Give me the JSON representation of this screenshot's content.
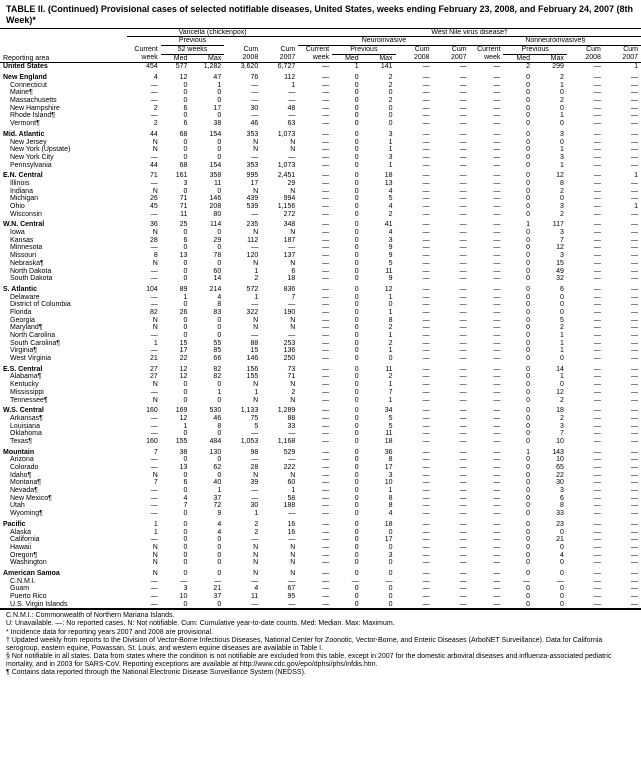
{
  "title": "TABLE II. (Continued) Provisional cases of selected notifiable diseases, United States, weeks ending February 23, 2008, and February 24, 2007 (8th Week)*",
  "group_headers": {
    "g1": "Varicella (chickenpox)",
    "g2": "West Nile virus disease†",
    "g2a": "Neuroinvasive",
    "g2b": "Nonneuroinvasive§"
  },
  "sub_headers": {
    "area": "Reporting area",
    "current": "Current",
    "prev": "Previous",
    "wk52": "52 weeks",
    "week": "week",
    "med": "Med",
    "max": "Max",
    "cum08": "Cum",
    "cum07": "Cum",
    "y08": "2008",
    "y07": "2007"
  },
  "rows": [
    {
      "sec": "hdr",
      "a": "United States",
      "v": [
        "454",
        "577",
        "1,282",
        "3,620",
        "6,727",
        "—",
        "1",
        "141",
        "—",
        "—",
        "—",
        "2",
        "299",
        "—",
        "1"
      ]
    },
    {
      "sec": "grp",
      "a": "New England",
      "v": [
        "4",
        "12",
        "47",
        "76",
        "112",
        "—",
        "0",
        "2",
        "—",
        "—",
        "—",
        "0",
        "2",
        "—",
        "—"
      ]
    },
    {
      "a": "Connecticut",
      "v": [
        "—",
        "0",
        "1",
        "—",
        "1",
        "—",
        "0",
        "2",
        "—",
        "—",
        "—",
        "0",
        "1",
        "—",
        "—"
      ]
    },
    {
      "a": "Maine¶",
      "v": [
        "—",
        "0",
        "0",
        "—",
        "—",
        "—",
        "0",
        "0",
        "—",
        "—",
        "—",
        "0",
        "0",
        "—",
        "—"
      ]
    },
    {
      "a": "Massachusetts",
      "v": [
        "—",
        "0",
        "0",
        "—",
        "—",
        "—",
        "0",
        "2",
        "—",
        "—",
        "—",
        "0",
        "2",
        "—",
        "—"
      ]
    },
    {
      "a": "New Hampshire",
      "v": [
        "2",
        "6",
        "17",
        "30",
        "48",
        "—",
        "0",
        "0",
        "—",
        "—",
        "—",
        "0",
        "0",
        "—",
        "—"
      ]
    },
    {
      "a": "Rhode Island¶",
      "v": [
        "—",
        "0",
        "0",
        "—",
        "—",
        "—",
        "0",
        "0",
        "—",
        "—",
        "—",
        "0",
        "1",
        "—",
        "—"
      ]
    },
    {
      "a": "Vermont¶",
      "v": [
        "2",
        "6",
        "38",
        "46",
        "63",
        "—",
        "0",
        "0",
        "—",
        "—",
        "—",
        "0",
        "0",
        "—",
        "—"
      ]
    },
    {
      "sec": "grp",
      "a": "Mid. Atlantic",
      "v": [
        "44",
        "68",
        "154",
        "353",
        "1,073",
        "—",
        "0",
        "3",
        "—",
        "—",
        "—",
        "0",
        "3",
        "—",
        "—"
      ]
    },
    {
      "a": "New Jersey",
      "v": [
        "N",
        "0",
        "0",
        "N",
        "N",
        "—",
        "0",
        "1",
        "—",
        "—",
        "—",
        "0",
        "0",
        "—",
        "—"
      ]
    },
    {
      "a": "New York (Upstate)",
      "v": [
        "N",
        "0",
        "0",
        "N",
        "N",
        "—",
        "0",
        "1",
        "—",
        "—",
        "—",
        "0",
        "1",
        "—",
        "—"
      ]
    },
    {
      "a": "New York City",
      "v": [
        "—",
        "0",
        "0",
        "—",
        "—",
        "—",
        "0",
        "3",
        "—",
        "—",
        "—",
        "0",
        "3",
        "—",
        "—"
      ]
    },
    {
      "a": "Pennsylvania",
      "v": [
        "44",
        "68",
        "154",
        "353",
        "1,073",
        "—",
        "0",
        "1",
        "—",
        "—",
        "—",
        "0",
        "1",
        "—",
        "—"
      ]
    },
    {
      "sec": "grp",
      "a": "E.N. Central",
      "v": [
        "71",
        "161",
        "358",
        "995",
        "2,451",
        "—",
        "0",
        "18",
        "—",
        "—",
        "—",
        "0",
        "12",
        "—",
        "1"
      ]
    },
    {
      "a": "Illinois",
      "v": [
        "—",
        "3",
        "11",
        "17",
        "29",
        "—",
        "0",
        "13",
        "—",
        "—",
        "—",
        "0",
        "8",
        "—",
        "—"
      ]
    },
    {
      "a": "Indiana",
      "v": [
        "N",
        "0",
        "0",
        "N",
        "N",
        "—",
        "0",
        "4",
        "—",
        "—",
        "—",
        "0",
        "2",
        "—",
        "—"
      ]
    },
    {
      "a": "Michigan",
      "v": [
        "26",
        "71",
        "146",
        "439",
        "994",
        "—",
        "0",
        "5",
        "—",
        "—",
        "—",
        "0",
        "0",
        "—",
        "—"
      ]
    },
    {
      "a": "Ohio",
      "v": [
        "45",
        "71",
        "208",
        "539",
        "1,156",
        "—",
        "0",
        "4",
        "—",
        "—",
        "—",
        "0",
        "3",
        "—",
        "1"
      ]
    },
    {
      "a": "Wisconsin",
      "v": [
        "—",
        "11",
        "80",
        "—",
        "272",
        "—",
        "0",
        "2",
        "—",
        "—",
        "—",
        "0",
        "2",
        "—",
        "—"
      ]
    },
    {
      "sec": "grp",
      "a": "W.N. Central",
      "v": [
        "36",
        "25",
        "114",
        "235",
        "348",
        "—",
        "0",
        "41",
        "—",
        "—",
        "—",
        "1",
        "117",
        "—",
        "—"
      ]
    },
    {
      "a": "Iowa",
      "v": [
        "N",
        "0",
        "0",
        "N",
        "N",
        "—",
        "0",
        "4",
        "—",
        "—",
        "—",
        "0",
        "3",
        "—",
        "—"
      ]
    },
    {
      "a": "Kansas",
      "v": [
        "28",
        "6",
        "29",
        "112",
        "187",
        "—",
        "0",
        "3",
        "—",
        "—",
        "—",
        "0",
        "7",
        "—",
        "—"
      ]
    },
    {
      "a": "Minnesota",
      "v": [
        "—",
        "0",
        "0",
        "—",
        "—",
        "—",
        "0",
        "9",
        "—",
        "—",
        "—",
        "0",
        "12",
        "—",
        "—"
      ]
    },
    {
      "a": "Missouri",
      "v": [
        "8",
        "13",
        "78",
        "120",
        "137",
        "—",
        "0",
        "9",
        "—",
        "—",
        "—",
        "0",
        "3",
        "—",
        "—"
      ]
    },
    {
      "a": "Nebraska¶",
      "v": [
        "N",
        "0",
        "0",
        "N",
        "N",
        "—",
        "0",
        "5",
        "—",
        "—",
        "—",
        "0",
        "15",
        "—",
        "—"
      ]
    },
    {
      "a": "North Dakota",
      "v": [
        "—",
        "0",
        "60",
        "1",
        "6",
        "—",
        "0",
        "11",
        "—",
        "—",
        "—",
        "0",
        "49",
        "—",
        "—"
      ]
    },
    {
      "a": "South Dakota",
      "v": [
        "—",
        "0",
        "14",
        "2",
        "18",
        "—",
        "0",
        "9",
        "—",
        "—",
        "—",
        "0",
        "32",
        "—",
        "—"
      ]
    },
    {
      "sec": "grp",
      "a": "S. Atlantic",
      "v": [
        "104",
        "89",
        "214",
        "572",
        "836",
        "—",
        "0",
        "12",
        "—",
        "—",
        "—",
        "0",
        "6",
        "—",
        "—"
      ]
    },
    {
      "a": "Delaware",
      "v": [
        "—",
        "1",
        "4",
        "1",
        "7",
        "—",
        "0",
        "1",
        "—",
        "—",
        "—",
        "0",
        "0",
        "—",
        "—"
      ]
    },
    {
      "a": "District of Columbia",
      "v": [
        "—",
        "0",
        "8",
        "—",
        "—",
        "—",
        "0",
        "0",
        "—",
        "—",
        "—",
        "0",
        "0",
        "—",
        "—"
      ]
    },
    {
      "a": "Florida",
      "v": [
        "82",
        "26",
        "83",
        "322",
        "190",
        "—",
        "0",
        "1",
        "—",
        "—",
        "—",
        "0",
        "0",
        "—",
        "—"
      ]
    },
    {
      "a": "Georgia",
      "v": [
        "N",
        "0",
        "0",
        "N",
        "N",
        "—",
        "0",
        "8",
        "—",
        "—",
        "—",
        "0",
        "5",
        "—",
        "—"
      ]
    },
    {
      "a": "Maryland¶",
      "v": [
        "N",
        "0",
        "0",
        "N",
        "N",
        "—",
        "0",
        "2",
        "—",
        "—",
        "—",
        "0",
        "2",
        "—",
        "—"
      ]
    },
    {
      "a": "North Carolina",
      "v": [
        "—",
        "0",
        "0",
        "—",
        "—",
        "—",
        "0",
        "1",
        "—",
        "—",
        "—",
        "0",
        "1",
        "—",
        "—"
      ]
    },
    {
      "a": "South Carolina¶",
      "v": [
        "1",
        "15",
        "55",
        "88",
        "253",
        "—",
        "0",
        "2",
        "—",
        "—",
        "—",
        "0",
        "1",
        "—",
        "—"
      ]
    },
    {
      "a": "Virginia¶",
      "v": [
        "—",
        "17",
        "85",
        "15",
        "136",
        "—",
        "0",
        "1",
        "—",
        "—",
        "—",
        "0",
        "1",
        "—",
        "—"
      ]
    },
    {
      "a": "West Virginia",
      "v": [
        "21",
        "22",
        "66",
        "146",
        "250",
        "—",
        "0",
        "0",
        "—",
        "—",
        "—",
        "0",
        "0",
        "—",
        "—"
      ]
    },
    {
      "sec": "grp",
      "a": "E.S. Central",
      "v": [
        "27",
        "12",
        "82",
        "156",
        "73",
        "—",
        "0",
        "11",
        "—",
        "—",
        "—",
        "0",
        "14",
        "—",
        "—"
      ]
    },
    {
      "a": "Alabama¶",
      "v": [
        "27",
        "12",
        "82",
        "155",
        "71",
        "—",
        "0",
        "2",
        "—",
        "—",
        "—",
        "0",
        "1",
        "—",
        "—"
      ]
    },
    {
      "a": "Kentucky",
      "v": [
        "N",
        "0",
        "0",
        "N",
        "N",
        "—",
        "0",
        "1",
        "—",
        "—",
        "—",
        "0",
        "0",
        "—",
        "—"
      ]
    },
    {
      "a": "Mississippi",
      "v": [
        "—",
        "0",
        "1",
        "1",
        "2",
        "—",
        "0",
        "7",
        "—",
        "—",
        "—",
        "0",
        "12",
        "—",
        "—"
      ]
    },
    {
      "a": "Tennessee¶",
      "v": [
        "N",
        "0",
        "0",
        "N",
        "N",
        "—",
        "0",
        "1",
        "—",
        "—",
        "—",
        "0",
        "2",
        "—",
        "—"
      ]
    },
    {
      "sec": "grp",
      "a": "W.S. Central",
      "v": [
        "160",
        "169",
        "530",
        "1,133",
        "1,289",
        "—",
        "0",
        "34",
        "—",
        "—",
        "—",
        "0",
        "18",
        "—",
        "—"
      ]
    },
    {
      "a": "Arkansas¶",
      "v": [
        "—",
        "12",
        "46",
        "75",
        "88",
        "—",
        "0",
        "5",
        "—",
        "—",
        "—",
        "0",
        "2",
        "—",
        "—"
      ]
    },
    {
      "a": "Louisiana",
      "v": [
        "—",
        "1",
        "8",
        "5",
        "33",
        "—",
        "0",
        "5",
        "—",
        "—",
        "—",
        "0",
        "3",
        "—",
        "—"
      ]
    },
    {
      "a": "Oklahoma",
      "v": [
        "—",
        "0",
        "0",
        "—",
        "—",
        "—",
        "0",
        "11",
        "—",
        "—",
        "—",
        "0",
        "7",
        "—",
        "—"
      ]
    },
    {
      "a": "Texas¶",
      "v": [
        "160",
        "155",
        "484",
        "1,053",
        "1,168",
        "—",
        "0",
        "18",
        "—",
        "—",
        "—",
        "0",
        "10",
        "—",
        "—"
      ]
    },
    {
      "sec": "grp",
      "a": "Mountain",
      "v": [
        "7",
        "38",
        "130",
        "98",
        "529",
        "—",
        "0",
        "36",
        "—",
        "—",
        "—",
        "1",
        "143",
        "—",
        "—"
      ]
    },
    {
      "a": "Arizona",
      "v": [
        "—",
        "0",
        "0",
        "—",
        "—",
        "—",
        "0",
        "8",
        "—",
        "—",
        "—",
        "0",
        "10",
        "—",
        "—"
      ]
    },
    {
      "a": "Colorado",
      "v": [
        "—",
        "13",
        "62",
        "28",
        "222",
        "—",
        "0",
        "17",
        "—",
        "—",
        "—",
        "0",
        "65",
        "—",
        "—"
      ]
    },
    {
      "a": "Idaho¶",
      "v": [
        "N",
        "0",
        "0",
        "N",
        "N",
        "—",
        "0",
        "3",
        "—",
        "—",
        "—",
        "0",
        "22",
        "—",
        "—"
      ]
    },
    {
      "a": "Montana¶",
      "v": [
        "7",
        "6",
        "40",
        "39",
        "60",
        "—",
        "0",
        "10",
        "—",
        "—",
        "—",
        "0",
        "30",
        "—",
        "—"
      ]
    },
    {
      "a": "Nevada¶",
      "v": [
        "—",
        "0",
        "1",
        "—",
        "1",
        "—",
        "0",
        "1",
        "—",
        "—",
        "—",
        "0",
        "3",
        "—",
        "—"
      ]
    },
    {
      "a": "New Mexico¶",
      "v": [
        "—",
        "4",
        "37",
        "—",
        "58",
        "—",
        "0",
        "8",
        "—",
        "—",
        "—",
        "0",
        "6",
        "—",
        "—"
      ]
    },
    {
      "a": "Utah",
      "v": [
        "—",
        "7",
        "72",
        "30",
        "188",
        "—",
        "0",
        "8",
        "—",
        "—",
        "—",
        "0",
        "8",
        "—",
        "—"
      ]
    },
    {
      "a": "Wyoming¶",
      "v": [
        "—",
        "0",
        "9",
        "1",
        "—",
        "—",
        "0",
        "4",
        "—",
        "—",
        "—",
        "0",
        "33",
        "—",
        "—"
      ]
    },
    {
      "sec": "grp",
      "a": "Pacific",
      "v": [
        "1",
        "0",
        "4",
        "2",
        "16",
        "—",
        "0",
        "18",
        "—",
        "—",
        "—",
        "0",
        "23",
        "—",
        "—"
      ]
    },
    {
      "a": "Alaska",
      "v": [
        "1",
        "0",
        "4",
        "2",
        "16",
        "—",
        "0",
        "0",
        "—",
        "—",
        "—",
        "0",
        "0",
        "—",
        "—"
      ]
    },
    {
      "a": "California",
      "v": [
        "—",
        "0",
        "0",
        "—",
        "—",
        "—",
        "0",
        "17",
        "—",
        "—",
        "—",
        "0",
        "21",
        "—",
        "—"
      ]
    },
    {
      "a": "Hawaii",
      "v": [
        "N",
        "0",
        "0",
        "N",
        "N",
        "—",
        "0",
        "0",
        "—",
        "—",
        "—",
        "0",
        "0",
        "—",
        "—"
      ]
    },
    {
      "a": "Oregon¶",
      "v": [
        "N",
        "0",
        "0",
        "N",
        "N",
        "—",
        "0",
        "3",
        "—",
        "—",
        "—",
        "0",
        "4",
        "—",
        "—"
      ]
    },
    {
      "a": "Washington",
      "v": [
        "N",
        "0",
        "0",
        "N",
        "N",
        "—",
        "0",
        "0",
        "—",
        "—",
        "—",
        "0",
        "0",
        "—",
        "—"
      ]
    },
    {
      "sec": "grp",
      "a": "American Samoa",
      "v": [
        "N",
        "0",
        "0",
        "N",
        "N",
        "—",
        "0",
        "0",
        "—",
        "—",
        "—",
        "0",
        "0",
        "—",
        "—"
      ]
    },
    {
      "a": "C.N.M.I.",
      "v": [
        "—",
        "—",
        "—",
        "—",
        "—",
        "—",
        "—",
        "—",
        "—",
        "—",
        "—",
        "—",
        "—",
        "—",
        "—"
      ]
    },
    {
      "a": "Guam",
      "v": [
        "—",
        "3",
        "21",
        "4",
        "67",
        "—",
        "0",
        "0",
        "—",
        "—",
        "—",
        "0",
        "0",
        "—",
        "—"
      ]
    },
    {
      "a": "Puerto Rico",
      "v": [
        "—",
        "10",
        "37",
        "11",
        "95",
        "—",
        "0",
        "0",
        "—",
        "—",
        "—",
        "0",
        "0",
        "—",
        "—"
      ]
    },
    {
      "a": "U.S. Virgin Islands",
      "v": [
        "—",
        "0",
        "0",
        "—",
        "—",
        "—",
        "0",
        "0",
        "—",
        "—",
        "—",
        "0",
        "0",
        "—",
        "—"
      ]
    }
  ],
  "footnotes": [
    "C.N.M.I.: Commonwealth of Northern Mariana Islands.",
    "U: Unavailable.    —: No reported cases.    N: Not notifiable.    Cum: Cumulative year-to-date counts.    Med: Median.    Max: Maximum.",
    "* Incidence data for reporting years 2007 and 2008 are provisional.",
    "† Updated weekly from reports to the Division of Vector-Borne Infectious Diseases, National Center for Zoonotic, Vector-Borne, and Enteric Diseases (ArboNET Surveillance). Data for California serogroup, eastern equine, Powassan, St. Louis, and western equine diseases are available in Table I.",
    "§ Not notifiable in all states. Data from states where the condition is not notifiable are excluded from this table, except in 2007 for the domestic arboviral diseases and influenza-associated pediatric mortality, and in 2003 for SARS-CoV. Reporting exceptions are available at http://www.cdc.gov/epo/dphsi/phs/infdis.htm.",
    "¶ Contains data reported through the National Electronic Disease Surveillance System (NEDSS)."
  ],
  "layout": {
    "col_widths": [
      "120",
      "32",
      "28",
      "32",
      "35",
      "35",
      "32",
      "28",
      "32",
      "35",
      "35",
      "32",
      "28",
      "32",
      "35",
      "35"
    ]
  }
}
